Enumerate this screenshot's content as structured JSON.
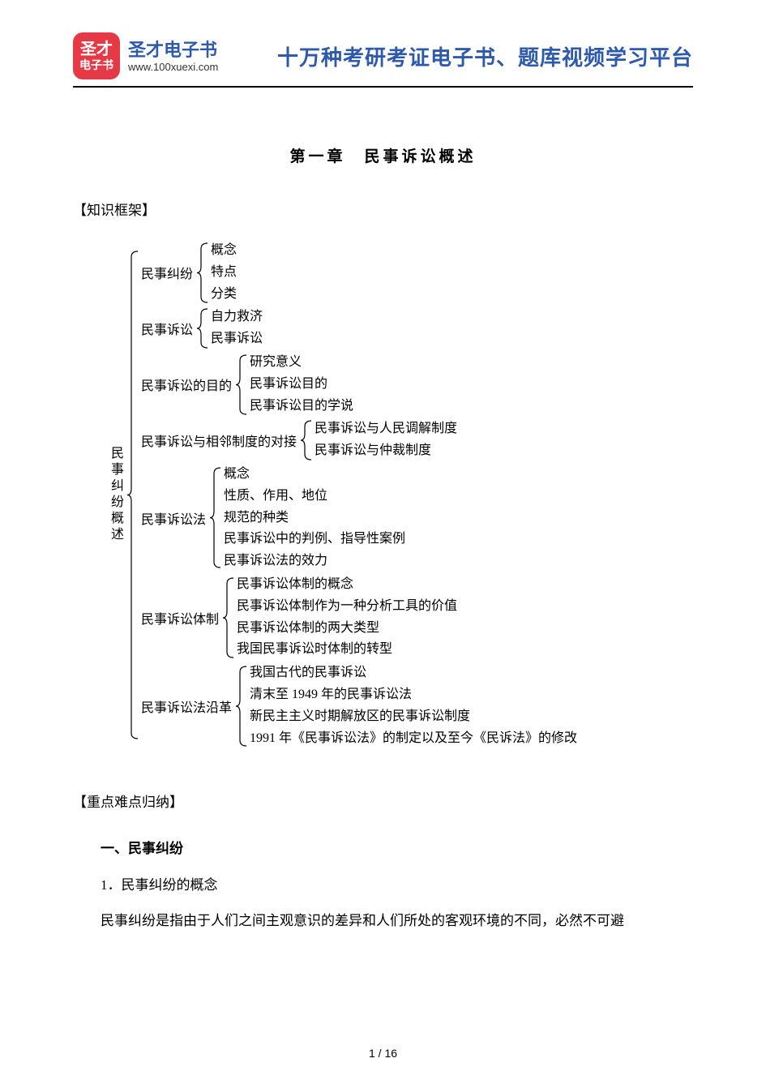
{
  "header": {
    "logo_line1": "圣才",
    "logo_line2": "电子书",
    "brand_title": "圣才电子书",
    "brand_url": "www.100xuexi.com",
    "tagline": "十万种考研考证电子书、题库视频学习平台",
    "colors": {
      "logo_bg": "#e63946",
      "logo_fg": "#ffffff",
      "brand_color": "#2e5aac",
      "underline": "#000000"
    }
  },
  "chapter": {
    "title": "第一章　民事诉讼概述",
    "framework_label": "【知识框架】",
    "keypoints_label": "【重点难点归纳】"
  },
  "tree": {
    "root": "民事纠纷概述",
    "branches": [
      {
        "label": "民事纠纷",
        "children": [
          "概念",
          "特点",
          "分类"
        ]
      },
      {
        "label": "民事诉讼",
        "children": [
          "自力救济",
          "民事诉讼"
        ]
      },
      {
        "label": "民事诉讼的目的",
        "children": [
          "研究意义",
          "民事诉讼目的",
          "民事诉讼目的学说"
        ]
      },
      {
        "label": "民事诉讼与相邻制度的对接",
        "children": [
          "民事诉讼与人民调解制度",
          "民事诉讼与仲裁制度"
        ]
      },
      {
        "label": "民事诉讼法",
        "children": [
          "概念",
          "性质、作用、地位",
          "规范的种类",
          "民事诉讼中的判例、指导性案例",
          "民事诉讼法的效力"
        ]
      },
      {
        "label": "民事诉讼体制",
        "children": [
          "民事诉讼体制的概念",
          "民事诉讼体制作为一种分析工具的价值",
          "民事诉讼体制的两大类型",
          "我国民事诉讼时体制的转型"
        ]
      },
      {
        "label": "民事诉讼法沿革",
        "children": [
          "我国古代的民事诉讼",
          "清末至 1949 年的民事诉讼法",
          "新民主主义时期解放区的民事诉讼制度",
          "1991 年《民事诉讼法》的制定以及至今《民诉法》的修改"
        ]
      }
    ]
  },
  "body": {
    "h1": "一、民事纠纷",
    "h2": "1．民事纠纷的概念",
    "p1": "民事纠纷是指由于人们之间主观意识的差异和人们所处的客观环境的不同，必然不可避"
  },
  "footer": {
    "page": "1 / 16"
  },
  "style": {
    "font_body": "SimSun",
    "font_heading": "SimHei",
    "font_tagline": "KaiTi",
    "text_color": "#000000",
    "background": "#ffffff",
    "tree_line_height": 1.55,
    "body_fontsize": 17,
    "tree_fontsize": 16
  }
}
